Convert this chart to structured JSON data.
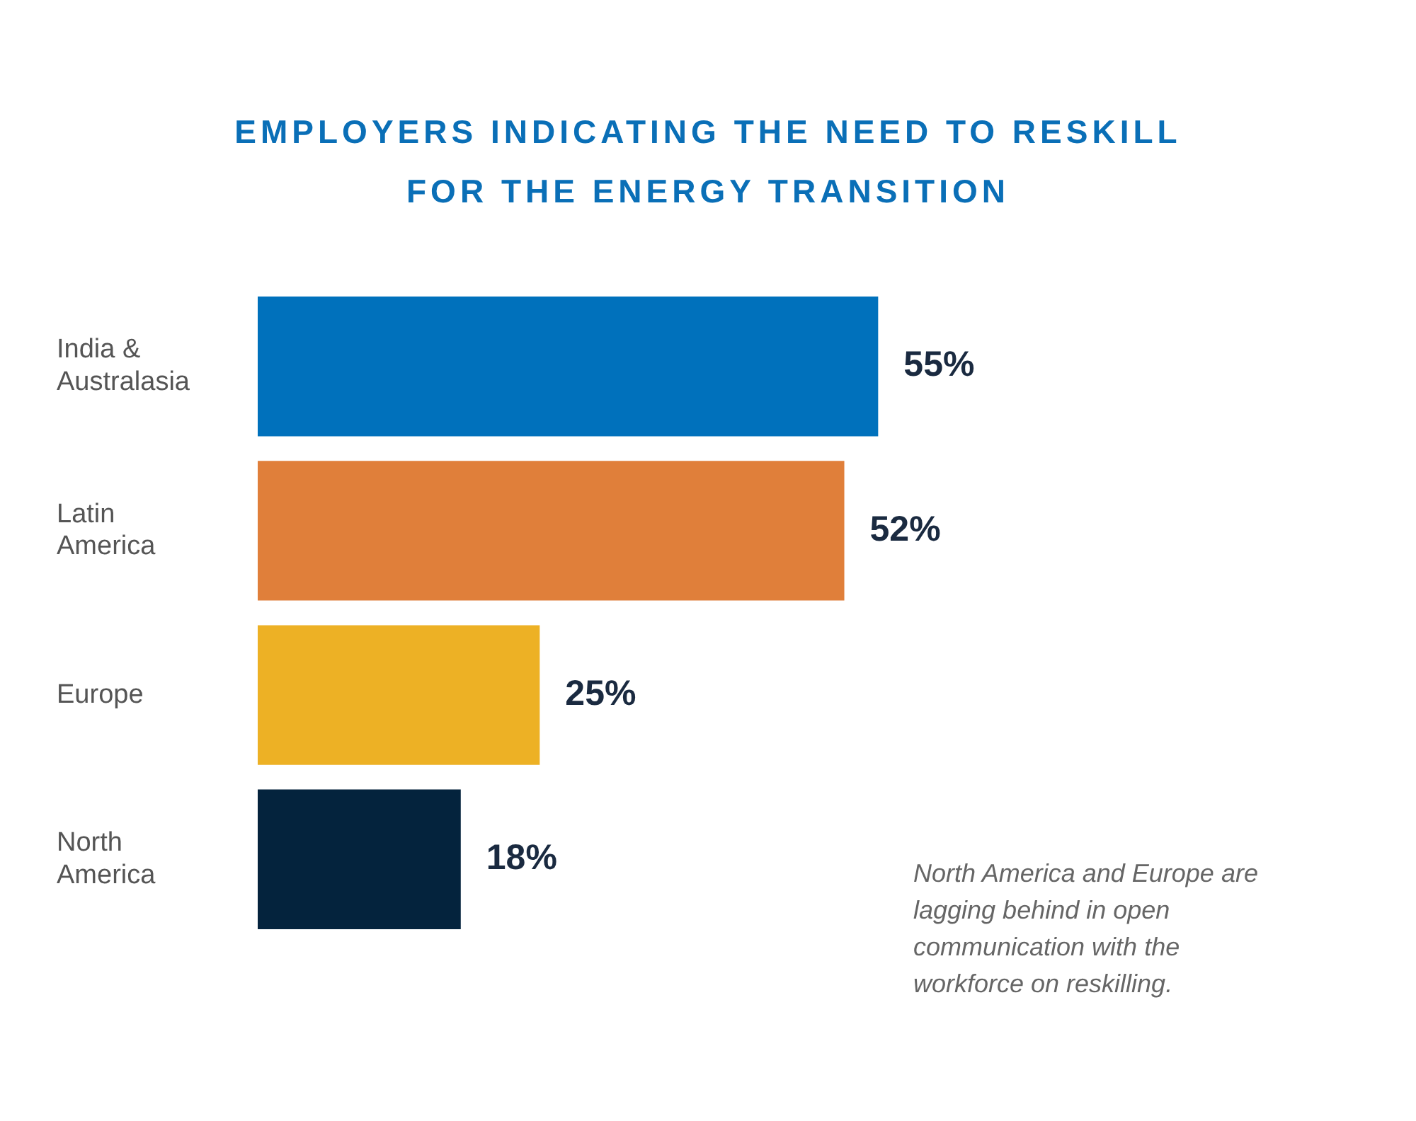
{
  "chart_data": {
    "type": "bar",
    "orientation": "horizontal",
    "title": "EMPLOYERS INDICATING THE NEED TO RESKILL FOR THE ENERGY TRANSITION",
    "categories": [
      "India & Australasia",
      "Latin America",
      "Europe",
      "North America"
    ],
    "values": [
      55,
      52,
      25,
      18
    ],
    "colors": [
      "#0071bc",
      "#e07f3a",
      "#edb125",
      "#04233d"
    ],
    "value_labels": [
      "55%",
      "52%",
      "25%",
      "18%"
    ],
    "annotations": [
      "North America and Europe are lagging behind in open communication with the workforce on reskilling."
    ]
  }
}
